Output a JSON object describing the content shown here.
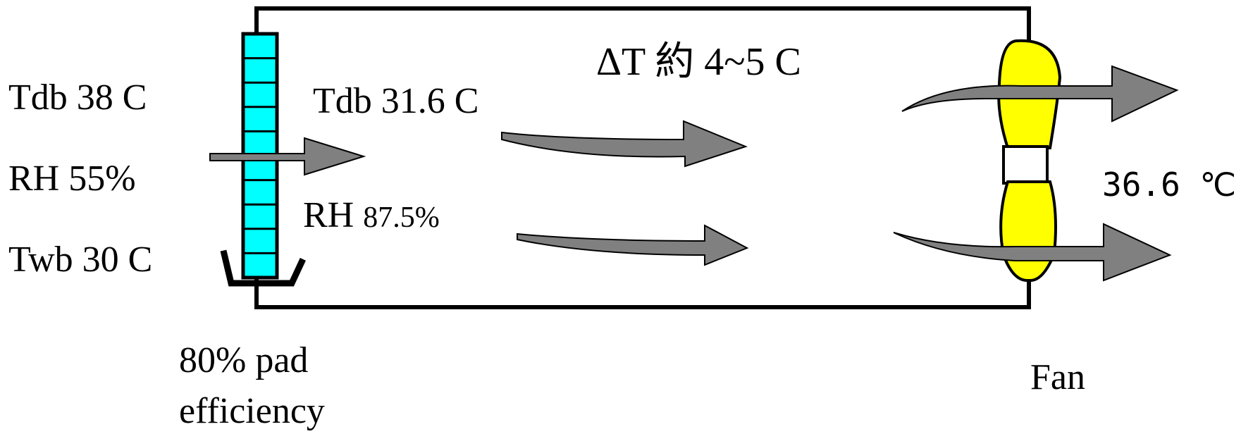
{
  "colors": {
    "pad": "#00ffff",
    "fan": "#ffff00",
    "arrow": "#808080",
    "line": "#000000"
  },
  "inlet": {
    "tdb": "Tdb 38 C",
    "rh": "RH 55%",
    "twb": "Twb 30 C"
  },
  "after_pad": {
    "tdb": "Tdb 31.6 C",
    "rh_prefix": "RH ",
    "rh_value": "87.5%"
  },
  "delta_t": "ΔT 約 4~5 C",
  "outlet_temp": "36.6 ℃",
  "pad_label": {
    "line1": "80% pad",
    "line2": "efficiency"
  },
  "fan_label": "Fan"
}
